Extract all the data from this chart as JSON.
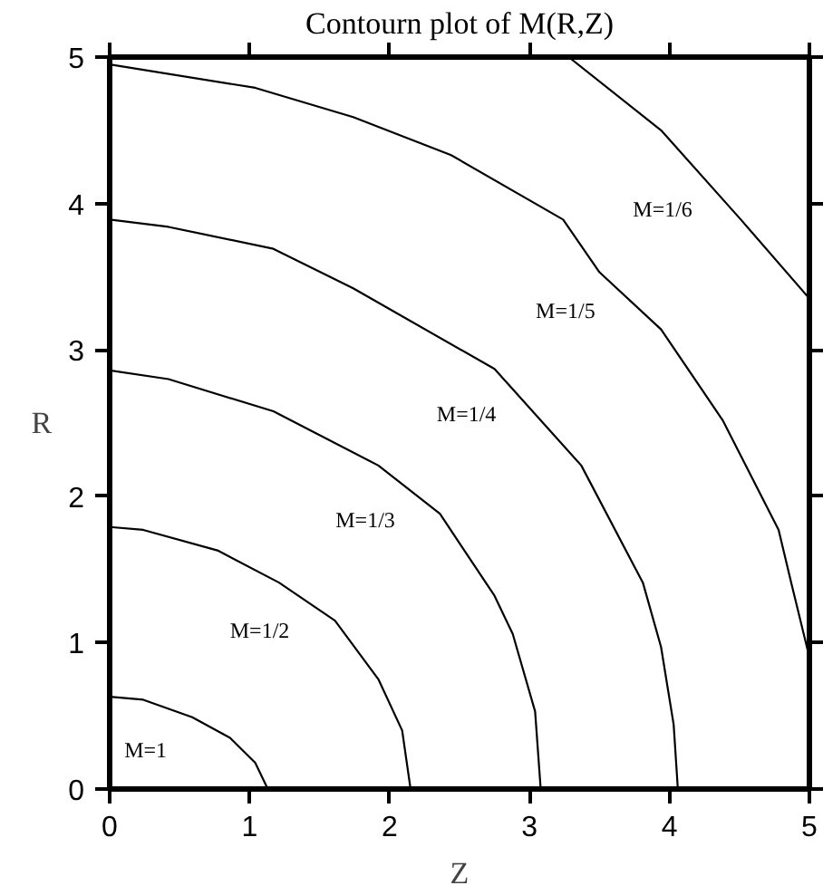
{
  "chart_data": {
    "type": "line",
    "title": "Contourn plot of M(R,Z)",
    "xlabel": "Z",
    "ylabel": "R",
    "xlim": [
      0,
      5
    ],
    "ylim": [
      0,
      5
    ],
    "xticks": [
      0,
      1,
      2,
      3,
      4,
      5
    ],
    "yticks": [
      0,
      1,
      2,
      3,
      4,
      5
    ],
    "line_style": "solid",
    "series": [
      {
        "name": "M=1",
        "color": "#000000",
        "x": [
          0,
          0.24,
          0.59,
          0.86,
          1.04,
          1.13
        ],
        "values": [
          0.63,
          0.61,
          0.49,
          0.35,
          0.18,
          0
        ]
      },
      {
        "name": "M=1/2",
        "color": "#000000",
        "x": [
          0,
          0.24,
          0.77,
          1.21,
          1.61,
          1.92,
          2.09,
          2.15
        ],
        "values": [
          1.79,
          1.77,
          1.63,
          1.41,
          1.15,
          0.75,
          0.4,
          0
        ]
      },
      {
        "name": "M=1/3",
        "color": "#000000",
        "x": [
          0,
          0.42,
          1.17,
          1.92,
          2.36,
          2.75,
          2.88,
          3.04,
          3.08
        ],
        "values": [
          2.86,
          2.8,
          2.58,
          2.21,
          1.88,
          1.32,
          1.06,
          0.53,
          0
        ]
      },
      {
        "name": "M=1/4",
        "color": "#000000",
        "x": [
          0,
          0.42,
          1.17,
          1.74,
          2.75,
          3.37,
          3.81,
          3.94,
          4.03,
          4.06
        ],
        "values": [
          3.89,
          3.84,
          3.69,
          3.42,
          2.87,
          2.21,
          1.41,
          0.97,
          0.44,
          0
        ]
      },
      {
        "name": "M=1/5",
        "color": "#000000",
        "x": [
          0,
          1.04,
          1.74,
          2.44,
          3.24,
          3.5,
          3.94,
          4.38,
          4.78,
          4.87,
          5
        ],
        "values": [
          4.95,
          4.79,
          4.59,
          4.33,
          3.89,
          3.53,
          3.14,
          2.52,
          1.77,
          1.41,
          0.9
        ]
      },
      {
        "name": "M=1/6",
        "color": "#000000",
        "x": [
          3.28,
          3.94,
          4.51,
          5
        ],
        "values": [
          5,
          4.5,
          3.89,
          3.35
        ]
      }
    ]
  }
}
